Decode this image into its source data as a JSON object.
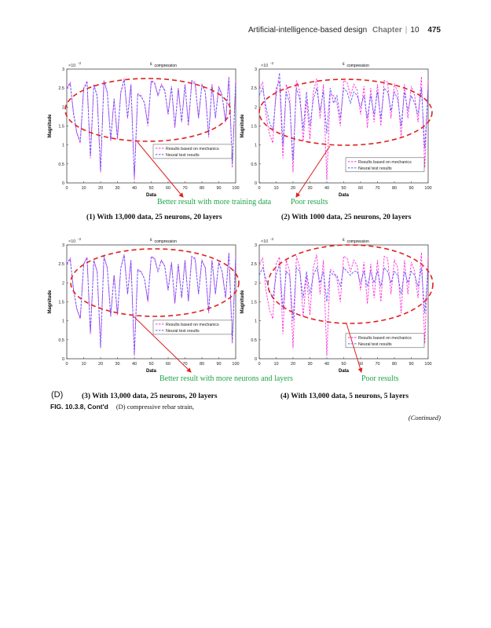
{
  "header": {
    "running_title": "Artificial-intelligence-based design",
    "chapter_label": "Chapter",
    "chapter_number": "10",
    "page_number": "475"
  },
  "panel_label": "(D)",
  "annotations": {
    "top_left": "Better result with more training data",
    "top_right": "Poor results",
    "bottom_left": "Better result with more neurons and layers",
    "bottom_right": "Poor results"
  },
  "captions": [
    "(1) With 13,000 data, 25 neurons, 20 layers",
    "(2) With 1000 data, 25 neurons, 20 layers",
    "(3) With 13,000 data, 25 neurons, 20 layers",
    "(4) With 13,000 data, 5 neurons, 5 layers"
  ],
  "figure": {
    "label": "FIG. 10.3.8, Cont'd",
    "text": "(D) compressive rebar strain,"
  },
  "continued": "(Continued)",
  "colors": {
    "mechanics": "#ff2bd6",
    "neural": "#5a5aff",
    "ellipse": "#e02020",
    "arrow": "#e02020",
    "green": "#1fa34a"
  },
  "chart_data": [
    {
      "type": "line",
      "title": "ε",
      "title_sub": "compression",
      "scale_label": "×10",
      "scale_exp": "-3",
      "xlabel": "Data",
      "ylabel": "Magnitude",
      "xlim": [
        0,
        100
      ],
      "ylim": [
        0,
        3
      ],
      "xticks": [
        "0",
        "10",
        "20",
        "30",
        "40",
        "50",
        "60",
        "70",
        "80",
        "90",
        "100"
      ],
      "yticks": [
        "0",
        "0.5",
        "1",
        "1.5",
        "2",
        "2.5",
        "3"
      ],
      "legend": [
        "Results based on mechanics",
        "Neural test results"
      ],
      "legend_position": "center-right",
      "x_step": 2,
      "series": [
        {
          "name": "Results based on mechanics",
          "values": [
            2.5,
            2.65,
            1.8,
            1.3,
            1.05,
            2.5,
            2.68,
            0.65,
            2.6,
            2.3,
            0.28,
            2.7,
            2.4,
            1.1,
            2.2,
            1.15,
            2.4,
            2.75,
            1.7,
            2.6,
            0.08,
            2.35,
            2.3,
            2.1,
            1.5,
            2.7,
            2.65,
            2.3,
            2.6,
            2.45,
            1.8,
            2.55,
            1.45,
            2.5,
            1.6,
            2.6,
            1.5,
            2.7,
            2.65,
            1.7,
            2.6,
            2.4,
            1.2,
            2.6,
            1.7,
            2.55,
            2.3,
            1.6,
            2.8,
            0.4,
            2.7
          ]
        },
        {
          "name": "Neural test results",
          "values": [
            2.48,
            2.62,
            1.85,
            1.32,
            1.1,
            2.48,
            2.65,
            0.7,
            2.58,
            2.28,
            0.32,
            2.68,
            2.38,
            1.15,
            2.22,
            1.2,
            2.38,
            2.72,
            1.72,
            2.58,
            0.15,
            2.33,
            2.28,
            2.12,
            1.55,
            2.68,
            2.62,
            2.3,
            2.58,
            2.43,
            1.82,
            2.52,
            1.5,
            2.48,
            1.62,
            2.58,
            1.55,
            2.68,
            2.6,
            1.72,
            2.58,
            2.4,
            1.25,
            2.58,
            1.72,
            2.52,
            2.3,
            1.62,
            2.75,
            0.5,
            2.68
          ]
        }
      ]
    },
    {
      "type": "line",
      "title": "ε",
      "title_sub": "compression",
      "scale_label": "×10",
      "scale_exp": "-3",
      "xlabel": "Data",
      "ylabel": "Magnitude",
      "xlim": [
        0,
        100
      ],
      "ylim": [
        0,
        3
      ],
      "xticks": [
        "0",
        "10",
        "20",
        "30",
        "40",
        "50",
        "60",
        "70",
        "80",
        "90",
        "100"
      ],
      "yticks": [
        "0",
        "0.5",
        "1",
        "1.5",
        "2",
        "2.5",
        "3"
      ],
      "legend": [
        "Results based on mechanics",
        "Neural test results"
      ],
      "legend_position": "bottom-right",
      "x_step": 2,
      "series": [
        {
          "name": "Results based on mechanics",
          "values": [
            2.5,
            2.65,
            1.8,
            1.3,
            1.05,
            2.5,
            2.68,
            0.65,
            2.6,
            2.3,
            0.28,
            2.7,
            2.4,
            1.1,
            2.2,
            1.15,
            2.4,
            2.75,
            1.7,
            2.6,
            0.08,
            2.35,
            2.3,
            2.1,
            1.5,
            2.7,
            2.65,
            2.3,
            2.6,
            2.45,
            1.8,
            2.55,
            1.45,
            2.5,
            1.6,
            2.6,
            1.5,
            2.7,
            2.65,
            1.7,
            2.6,
            2.4,
            1.2,
            2.6,
            1.7,
            2.55,
            2.3,
            1.6,
            2.8,
            0.4,
            2.7
          ]
        },
        {
          "name": "Neural test results",
          "values": [
            2.3,
            2.5,
            2.0,
            1.6,
            1.4,
            2.3,
            2.9,
            1.0,
            2.4,
            2.1,
            0.6,
            2.5,
            2.2,
            1.4,
            2.4,
            1.5,
            2.2,
            2.5,
            1.9,
            2.4,
            1.3,
            2.5,
            2.1,
            2.3,
            1.7,
            2.5,
            2.4,
            2.1,
            2.4,
            2.3,
            2.0,
            2.3,
            1.7,
            2.3,
            1.8,
            2.4,
            1.7,
            2.5,
            2.4,
            1.9,
            2.4,
            2.2,
            1.5,
            2.4,
            1.9,
            2.3,
            2.1,
            1.8,
            2.5,
            0.9,
            2.5
          ]
        }
      ]
    },
    {
      "type": "line",
      "title": "ε",
      "title_sub": "compression",
      "scale_label": "×10",
      "scale_exp": "-3",
      "xlabel": "Data",
      "ylabel": "Magnitude",
      "xlim": [
        0,
        100
      ],
      "ylim": [
        0,
        3
      ],
      "xticks": [
        "0",
        "10",
        "20",
        "30",
        "40",
        "50",
        "60",
        "70",
        "80",
        "90",
        "100"
      ],
      "yticks": [
        "0",
        "0.5",
        "1",
        "1.5",
        "2",
        "2.5",
        "3"
      ],
      "legend": [
        "Results based on mechanics",
        "Neural test results"
      ],
      "legend_position": "center-right",
      "x_step": 2,
      "series": [
        {
          "name": "Results based on mechanics",
          "values": [
            2.5,
            2.65,
            1.8,
            1.3,
            1.05,
            2.5,
            2.68,
            0.65,
            2.6,
            2.3,
            0.28,
            2.7,
            2.4,
            1.1,
            2.2,
            1.15,
            2.4,
            2.75,
            1.7,
            2.6,
            0.08,
            2.35,
            2.3,
            2.1,
            1.5,
            2.7,
            2.65,
            2.3,
            2.6,
            2.45,
            1.8,
            2.55,
            1.45,
            2.5,
            1.6,
            2.6,
            1.5,
            2.7,
            2.65,
            1.7,
            2.6,
            2.4,
            1.2,
            2.6,
            1.7,
            2.55,
            2.3,
            1.6,
            2.8,
            0.4,
            2.7
          ]
        },
        {
          "name": "Neural test results",
          "values": [
            2.49,
            2.63,
            1.83,
            1.31,
            1.08,
            2.49,
            2.66,
            0.68,
            2.59,
            2.29,
            0.3,
            2.69,
            2.39,
            1.13,
            2.21,
            1.18,
            2.39,
            2.73,
            1.71,
            2.59,
            0.12,
            2.34,
            2.29,
            2.11,
            1.53,
            2.69,
            2.63,
            2.3,
            2.59,
            2.44,
            1.81,
            2.53,
            1.48,
            2.49,
            1.61,
            2.59,
            1.53,
            2.69,
            2.62,
            1.71,
            2.59,
            2.4,
            1.23,
            2.59,
            1.71,
            2.53,
            2.3,
            1.61,
            2.77,
            0.45,
            2.69
          ]
        }
      ]
    },
    {
      "type": "line",
      "title": "ε",
      "title_sub": "compression",
      "scale_label": "×10",
      "scale_exp": "-3",
      "xlabel": "Data",
      "ylabel": "Magnitude",
      "xlim": [
        0,
        100
      ],
      "ylim": [
        0,
        3
      ],
      "xticks": [
        "0",
        "10",
        "20",
        "30",
        "40",
        "50",
        "60",
        "70",
        "80",
        "90",
        "100"
      ],
      "yticks": [
        "0",
        "0.5",
        "1",
        "1.5",
        "2",
        "2.5",
        "3"
      ],
      "legend": [
        "Results based on mechanics",
        "Neural test results"
      ],
      "legend_position": "bottom-right",
      "x_step": 2,
      "series": [
        {
          "name": "Results based on mechanics",
          "values": [
            2.5,
            2.65,
            1.8,
            1.3,
            1.05,
            2.5,
            2.68,
            0.65,
            2.6,
            2.3,
            0.28,
            2.7,
            2.4,
            1.1,
            2.2,
            1.15,
            2.4,
            2.75,
            1.7,
            2.6,
            0.08,
            2.35,
            2.3,
            2.1,
            1.5,
            2.7,
            2.65,
            2.3,
            2.6,
            2.45,
            1.8,
            2.55,
            1.45,
            2.5,
            1.6,
            2.6,
            1.5,
            2.7,
            2.65,
            1.7,
            2.6,
            2.4,
            1.2,
            2.6,
            1.7,
            2.55,
            2.3,
            1.6,
            2.8,
            0.4,
            2.7
          ]
        },
        {
          "name": "Neural test results",
          "values": [
            2.2,
            2.4,
            2.1,
            1.8,
            1.6,
            2.2,
            2.5,
            1.3,
            2.3,
            2.2,
            1.0,
            2.4,
            2.3,
            1.6,
            2.3,
            1.7,
            2.2,
            2.4,
            2.0,
            2.3,
            1.5,
            2.3,
            2.2,
            2.2,
            1.9,
            2.4,
            2.3,
            2.2,
            2.3,
            2.3,
            2.0,
            2.3,
            1.9,
            2.3,
            2.0,
            2.3,
            1.9,
            2.4,
            2.3,
            2.0,
            2.3,
            2.2,
            1.7,
            2.3,
            2.0,
            2.3,
            2.2,
            1.9,
            2.4,
            1.2,
            2.4
          ]
        }
      ]
    }
  ]
}
